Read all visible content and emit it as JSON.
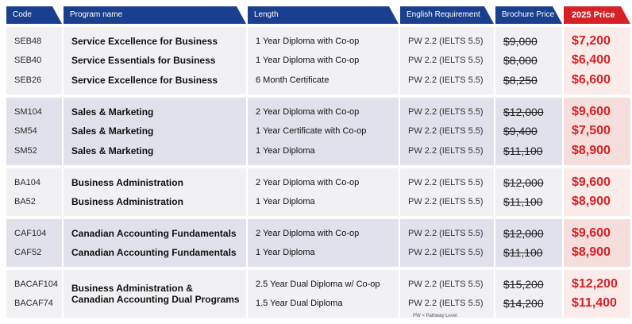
{
  "headers": {
    "code": "Code",
    "program": "Program name",
    "length": "Length",
    "english": "English Requirement",
    "brochure": "Brochure Price",
    "price2025": "2025 Price"
  },
  "groups": [
    {
      "rows": [
        {
          "code": "SEB48",
          "name": "Service Excellence for Business",
          "length": "1 Year Diploma with Co-op",
          "english": "PW 2.2 (IELTS 5.5)",
          "brochure": "$9,000",
          "price": "$7,200"
        },
        {
          "code": "SEB40",
          "name": "Service Essentials for Business",
          "length": "1 Year Diploma with Co-op",
          "english": "PW 2.2 (IELTS 5.5)",
          "brochure": "$8,000",
          "price": "$6,400"
        },
        {
          "code": "SEB26",
          "name": "Service Excellence for Business",
          "length": "6 Month Certificate",
          "english": "PW 2.2 (IELTS 5.5)",
          "brochure": "$8,250",
          "price": "$6,600"
        }
      ]
    },
    {
      "rows": [
        {
          "code": "SM104",
          "name": "Sales & Marketing",
          "length": "2 Year Diploma with Co-op",
          "english": "PW 2.2 (IELTS 5.5)",
          "brochure": "$12,000",
          "price": "$9,600"
        },
        {
          "code": "SM54",
          "name": "Sales & Marketing",
          "length": "1 Year Certificate with Co-op",
          "english": "PW 2.2 (IELTS 5.5)",
          "brochure": "$9,400",
          "price": "$7,500"
        },
        {
          "code": "SM52",
          "name": "Sales & Marketing",
          "length": "1 Year Diploma",
          "english": "PW 2.2 (IELTS 5.5)",
          "brochure": "$11,100",
          "price": "$8,900"
        }
      ]
    },
    {
      "rows": [
        {
          "code": "BA104",
          "name": "Business Administration",
          "length": "2 Year Diploma with Co-op",
          "english": "PW 2.2 (IELTS 5.5)",
          "brochure": "$12,000",
          "price": "$9,600"
        },
        {
          "code": "BA52",
          "name": "Business Administration",
          "length": "1 Year Diploma",
          "english": "PW 2.2 (IELTS 5.5)",
          "brochure": "$11,100",
          "price": "$8,900"
        }
      ]
    },
    {
      "rows": [
        {
          "code": "CAF104",
          "name": "Canadian Accounting Fundamentals",
          "length": "2 Year Diploma with Co-op",
          "english": "PW 2.2 (IELTS 5.5)",
          "brochure": "$12,000",
          "price": "$9,600"
        },
        {
          "code": "CAF52",
          "name": "Canadian Accounting Fundamentals",
          "length": "1 Year Diploma",
          "english": "PW 2.2 (IELTS 5.5)",
          "brochure": "$11,100",
          "price": "$8,900"
        }
      ]
    },
    {
      "combined_name": [
        "Business Administration &",
        "Canadian Accounting Dual Programs"
      ],
      "rows": [
        {
          "code": "BACAF104",
          "length": "2.5 Year Dual Diploma w/ Co-op",
          "english": "PW 2.2 (IELTS 5.5)",
          "brochure": "$15,200",
          "price": "$12,200"
        },
        {
          "code": "BACAF74",
          "length": "1.5 Year Dual Diploma",
          "english": "PW 2.2 (IELTS 5.5)",
          "brochure": "$14,200",
          "price": "$11,400"
        }
      ]
    }
  ],
  "footnote": "PW = Pathway Level",
  "colors": {
    "header": "#1a3f8e",
    "accent": "#d62226"
  }
}
